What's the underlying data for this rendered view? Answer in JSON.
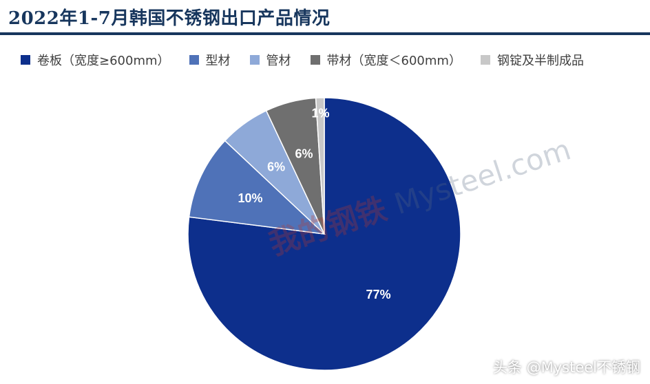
{
  "chart_data": {
    "type": "pie",
    "title": "2022年1-7月韩国不锈钢出口产品情况",
    "categories": [
      "卷板（宽度≥600mm）",
      "型材",
      "管材",
      "带材（宽度＜600mm）",
      "钢锭及半制成品"
    ],
    "values": [
      77,
      10,
      6,
      6,
      1
    ],
    "labels": [
      "77%",
      "10%",
      "6%",
      "6%",
      "1%"
    ],
    "colors": [
      "#0d2f8c",
      "#4f72b8",
      "#8ea9d8",
      "#6f6f6f",
      "#c8c8c8"
    ],
    "legend_position": "top"
  },
  "watermark": {
    "logo": "我的钢铁",
    "text": "Mysteel.com"
  },
  "attribution": "头条 @Mysteel不锈钢"
}
